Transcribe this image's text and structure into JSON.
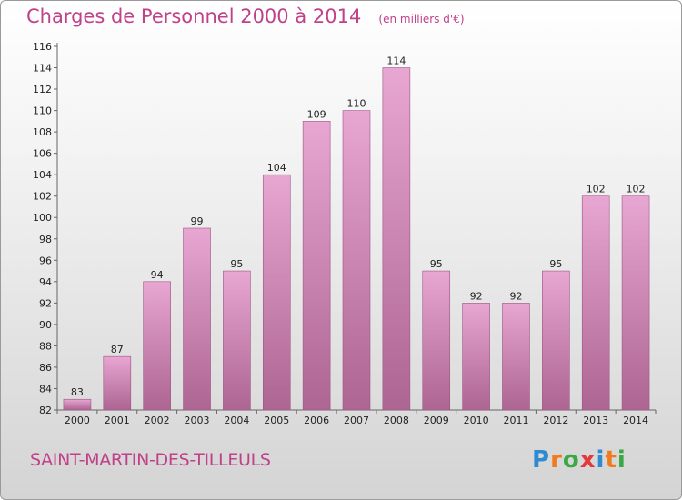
{
  "header": {
    "title": "Charges de Personnel 2000 à 2014",
    "subtitle": "(en milliers d'€)"
  },
  "footer": {
    "commune": "SAINT-MARTIN-DES-TILLEULS",
    "logo": {
      "letters": [
        "P",
        "r",
        "o",
        "x",
        "i",
        "t",
        "i"
      ],
      "colors": [
        "#2f8bd0",
        "#f07b1e",
        "#39a845",
        "#e23a3a",
        "#2f8bd0",
        "#f07b1e",
        "#39a845"
      ]
    }
  },
  "chart_data": {
    "type": "bar",
    "categories": [
      "2000",
      "2001",
      "2002",
      "2003",
      "2004",
      "2005",
      "2006",
      "2007",
      "2008",
      "2009",
      "2010",
      "2011",
      "2012",
      "2013",
      "2014"
    ],
    "values": [
      83,
      87,
      94,
      99,
      95,
      104,
      109,
      110,
      114,
      95,
      92,
      92,
      95,
      102,
      102
    ],
    "ylim": [
      82,
      116
    ],
    "yticks": [
      82,
      84,
      86,
      88,
      90,
      92,
      94,
      96,
      98,
      100,
      102,
      104,
      106,
      108,
      110,
      112,
      114,
      116
    ],
    "grid": false,
    "bar_colors": {
      "top": "#e8a6d2",
      "bottom": "#ad6592",
      "edge": "#9c5684"
    }
  }
}
